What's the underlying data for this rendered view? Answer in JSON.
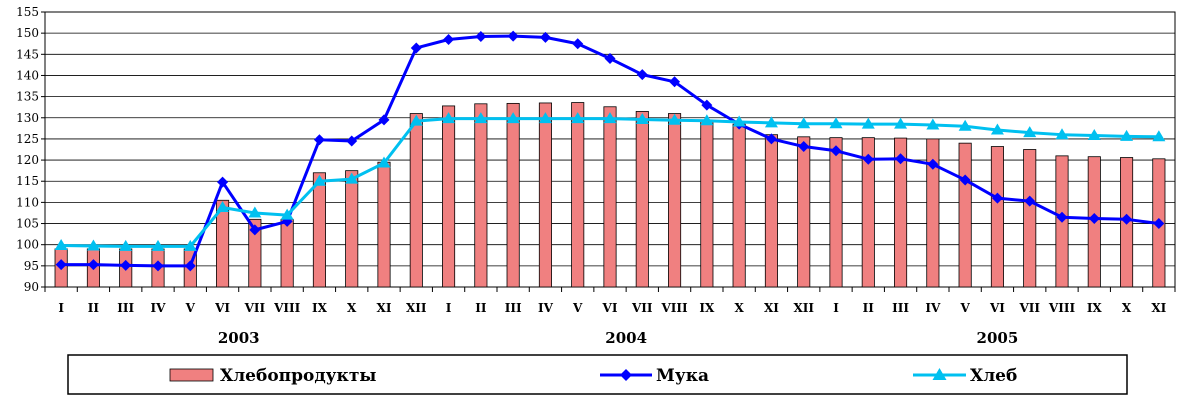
{
  "chart_data": {
    "type": "bar+line",
    "categories": [
      "I",
      "II",
      "III",
      "IV",
      "V",
      "VI",
      "VII",
      "VIII",
      "IX",
      "X",
      "XI",
      "XII",
      "I",
      "II",
      "III",
      "IV",
      "V",
      "VI",
      "VII",
      "VIII",
      "IX",
      "X",
      "XI",
      "XII",
      "I",
      "II",
      "III",
      "IV",
      "V",
      "VI",
      "VII",
      "VIII",
      "IX",
      "X",
      "XI"
    ],
    "year_groups": [
      {
        "label": "2003",
        "start": 0,
        "end": 11
      },
      {
        "label": "2004",
        "start": 12,
        "end": 23
      },
      {
        "label": "2005",
        "start": 24,
        "end": 34
      }
    ],
    "ylim": [
      90,
      155
    ],
    "yticks": [
      90,
      95,
      100,
      105,
      110,
      115,
      120,
      125,
      130,
      135,
      140,
      145,
      150,
      155
    ],
    "grid": "horizontal",
    "legend_position": "bottom",
    "series": [
      {
        "name": "Хлебопродукты",
        "type": "bar",
        "color": "#F08080",
        "values": [
          99.0,
          99.0,
          99.0,
          99.0,
          99.0,
          110.5,
          106.0,
          106.0,
          117.0,
          117.5,
          119.5,
          131.0,
          132.8,
          133.3,
          133.4,
          133.5,
          133.6,
          132.6,
          131.5,
          131.0,
          129.5,
          128.5,
          126.0,
          125.5,
          125.3,
          125.3,
          125.2,
          125.0,
          124.0,
          123.2,
          122.5,
          121.0,
          120.8,
          120.6,
          120.3
        ]
      },
      {
        "name": "Мука",
        "type": "line",
        "marker": "diamond",
        "color": "#0000FF",
        "values": [
          95.3,
          95.3,
          95.1,
          95.0,
          95.0,
          114.8,
          103.5,
          105.5,
          124.8,
          124.5,
          129.5,
          146.5,
          148.5,
          149.2,
          149.3,
          149.0,
          147.5,
          144.0,
          140.2,
          138.5,
          133.0,
          128.5,
          125.0,
          123.2,
          122.2,
          120.2,
          120.3,
          119.0,
          115.3,
          111.0,
          110.3,
          106.5,
          106.2,
          106.0,
          105.0
        ]
      },
      {
        "name": "Хлеб",
        "type": "line",
        "marker": "triangle",
        "color": "#00C0F0",
        "values": [
          99.8,
          99.7,
          99.6,
          99.6,
          99.6,
          108.8,
          107.5,
          107.0,
          115.0,
          115.5,
          119.3,
          129.2,
          129.8,
          129.8,
          129.8,
          129.8,
          129.8,
          129.8,
          129.6,
          129.4,
          129.3,
          129.0,
          128.8,
          128.6,
          128.6,
          128.5,
          128.5,
          128.3,
          128.0,
          127.1,
          126.5,
          126.0,
          125.8,
          125.6,
          125.5
        ]
      }
    ]
  }
}
